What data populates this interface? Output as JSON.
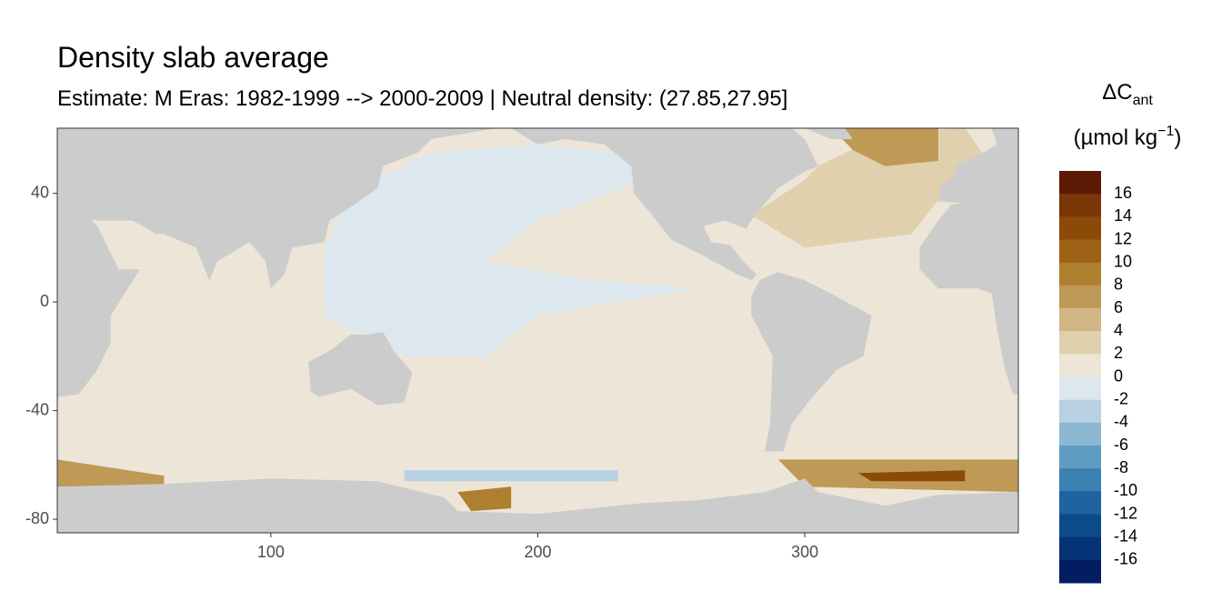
{
  "chart_data": {
    "type": "map",
    "title": "Density slab average",
    "subtitle": "Estimate: M Eras: 1982-1999 --> 2000-2009 | Neutral density: (27.85,27.95]",
    "xlim": [
      20,
      380
    ],
    "ylim": [
      -85,
      64
    ],
    "xticks": [
      100,
      200,
      300
    ],
    "yticks": [
      40,
      0,
      -40,
      -80
    ],
    "legend": {
      "title": "ΔC",
      "title_subscript": "ant",
      "unit": "(µmol kg",
      "unit_superscript": "−1",
      "unit_close": ")",
      "breaks": [
        16,
        14,
        12,
        10,
        8,
        6,
        4,
        2,
        0,
        -2,
        -4,
        -6,
        -8,
        -10,
        -12,
        -14,
        -16
      ],
      "colors": [
        "#5c1a05",
        "#7a3606",
        "#8c4a09",
        "#9c6114",
        "#ae7f2e",
        "#bf9a56",
        "#d0b683",
        "#e0d0ae",
        "#ede6d8",
        "#dce8ed",
        "#b7d1e2",
        "#8db8d2",
        "#5f9cc2",
        "#3a80b1",
        "#1d64a0",
        "#0b4b8a",
        "#063376",
        "#031d63"
      ]
    }
  }
}
